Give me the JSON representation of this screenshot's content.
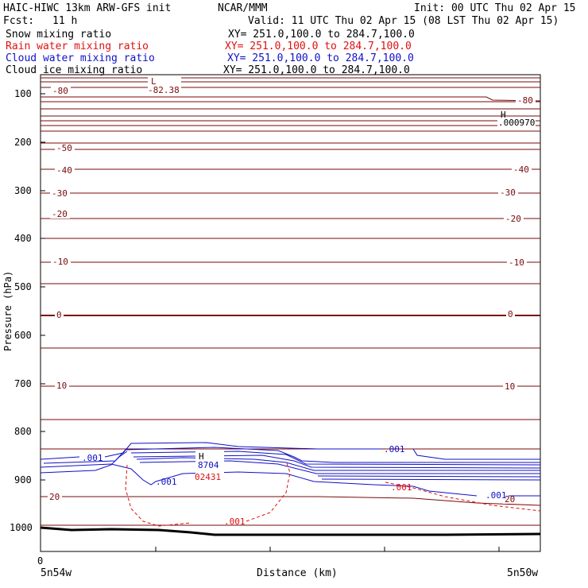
{
  "header": {
    "model": "HAIC-HIWC 13km ARW-GFS init",
    "center": "NCAR/MMM",
    "init": "Init: 00 UTC Thu 02 Apr 15",
    "fcst_label": "Fcst:",
    "fcst_value": "11 h",
    "valid": "Valid: 11 UTC Thu 02 Apr 15 (08 LST Thu 02 Apr 15)"
  },
  "fields": [
    {
      "name": "Snow mixing ratio",
      "range": "XY= 251.0,100.0 to 284.7,100.0",
      "color": "#000000"
    },
    {
      "name": "Rain water mixing ratio",
      "range": "XY= 251.0,100.0 to 284.7,100.0",
      "color": "#e01010"
    },
    {
      "name": "Cloud water mixing ratio",
      "range": "XY= 251.0,100.0 to 284.7,100.0",
      "color": "#1010c8"
    },
    {
      "name": "Cloud ice mixing ratio",
      "range": "XY= 251.0,100.0 to 284.7,100.0",
      "color": "#000000"
    }
  ],
  "chart_data": {
    "type": "contour-cross-section",
    "ylabel": "Pressure (hPa)",
    "xlabel": "Distance (km)",
    "x_start_label": "0",
    "x_left_label": "5n54w",
    "x_right_label": "5n50w",
    "y_ticks": [
      100,
      200,
      300,
      400,
      500,
      600,
      700,
      800,
      900,
      1000
    ],
    "ylim": [
      1050,
      50
    ],
    "temperature_color": "#7a0a0a",
    "cloud_color": "#1010c8",
    "rain_color": "#e01010",
    "temp_labels_left": [
      "-80",
      "-50",
      "-40",
      "-30",
      "-20",
      "-10",
      "0",
      "10",
      "20"
    ],
    "temp_labels_right": [
      "-80",
      "-40",
      "-30",
      "-20",
      "-10",
      "0",
      "10",
      "20"
    ],
    "extrema": {
      "low_symbol": "L",
      "low_value": "-82.38",
      "high_symbol": "H",
      "high_value": ".000970",
      "cloud_high_symbol": "H",
      "cloud_high_value": "8704",
      "rain_high_value": "02431"
    },
    "cloud_contour_labels": [
      ".001",
      ".001",
      ".001",
      ".001"
    ],
    "rain_contour_labels": [
      ".001",
      ".001"
    ]
  }
}
